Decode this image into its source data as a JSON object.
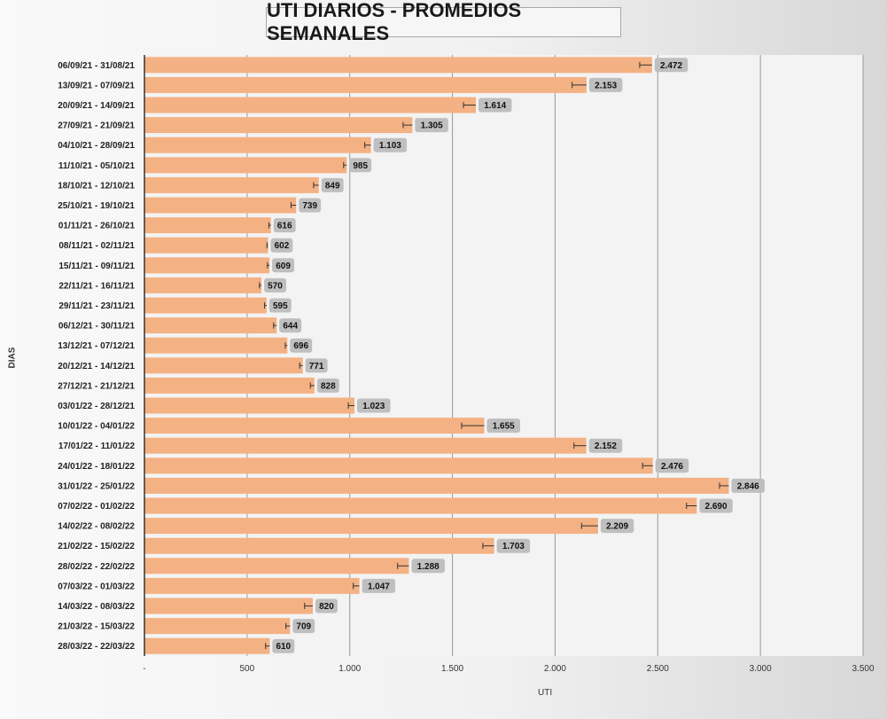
{
  "chart_data": {
    "type": "bar",
    "orientation": "horizontal",
    "title": "UTI DIARIOS - PROMEDIOS SEMANALES",
    "xlabel": "UTI",
    "ylabel": "DIAS",
    "xlim": [
      0,
      3500
    ],
    "x_ticks": [
      "-",
      "500",
      "1.000",
      "1.500",
      "2.000",
      "2.500",
      "3.000",
      "3.500"
    ],
    "x_tick_values": [
      0,
      500,
      1000,
      1500,
      2000,
      2500,
      3000,
      3500
    ],
    "grid": true,
    "bar_color": "#f4b183",
    "label_bg": "#bfbfbf",
    "categories": [
      "06/09/21 - 31/08/21",
      "13/09/21 - 07/09/21",
      "20/09/21 - 14/09/21",
      "27/09/21 - 21/09/21",
      "04/10/21 - 28/09/21",
      "11/10/21 - 05/10/21",
      "18/10/21 - 12/10/21",
      "25/10/21 - 19/10/21",
      "01/11/21 - 26/10/21",
      "08/11/21 - 02/11/21",
      "15/11/21 - 09/11/21",
      "22/11/21 - 16/11/21",
      "29/11/21 - 23/11/21",
      "06/12/21 - 30/11/21",
      "13/12/21 - 07/12/21",
      "20/12/21 - 14/12/21",
      "27/12/21 - 21/12/21",
      "03/01/22 - 28/12/21",
      "10/01/22 - 04/01/22",
      "17/01/22 - 11/01/22",
      "24/01/22 - 18/01/22",
      "31/01/22 - 25/01/22",
      "07/02/22 - 01/02/22",
      "14/02/22 - 08/02/22",
      "21/02/22 - 15/02/22",
      "28/02/22 - 22/02/22",
      "07/03/22 - 01/03/22",
      "14/03/22 - 08/03/22",
      "21/03/22 - 15/03/22",
      "28/03/22 - 22/03/22"
    ],
    "values": [
      2472,
      2153,
      1614,
      1305,
      1103,
      985,
      849,
      739,
      616,
      602,
      609,
      570,
      595,
      644,
      696,
      771,
      828,
      1023,
      1655,
      2152,
      2476,
      2846,
      2690,
      2209,
      1703,
      1288,
      1047,
      820,
      709,
      610
    ],
    "value_labels": [
      "2.472",
      "2.153",
      "1.614",
      "1.305",
      "1.103",
      "985",
      "849",
      "739",
      "616",
      "602",
      "609",
      "570",
      "595",
      "644",
      "696",
      "771",
      "828",
      "1.023",
      "1.655",
      "2.152",
      "2.476",
      "2.846",
      "2.690",
      "2.209",
      "1.703",
      "1.288",
      "1.047",
      "820",
      "709",
      "610"
    ],
    "error_minus": [
      60,
      70,
      60,
      45,
      30,
      15,
      25,
      25,
      10,
      5,
      10,
      10,
      10,
      15,
      10,
      15,
      20,
      30,
      110,
      60,
      50,
      45,
      50,
      80,
      55,
      55,
      30,
      40,
      20,
      20
    ]
  }
}
